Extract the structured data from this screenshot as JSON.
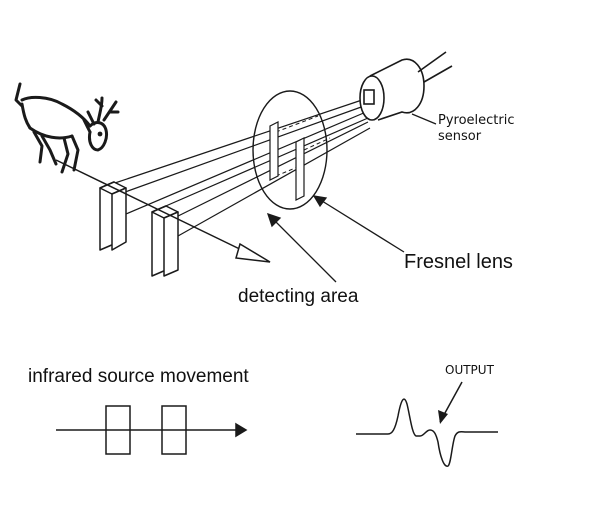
{
  "labels": {
    "sensor": [
      "Pyroelectric",
      "sensor"
    ],
    "fresnel_lens": "Fresnel lens",
    "detecting_area": "detecting area",
    "movement": "infrared source movement",
    "output": "OUTPUT"
  },
  "colors": {
    "stroke": "#1a1a1a",
    "background": "#ffffff"
  }
}
